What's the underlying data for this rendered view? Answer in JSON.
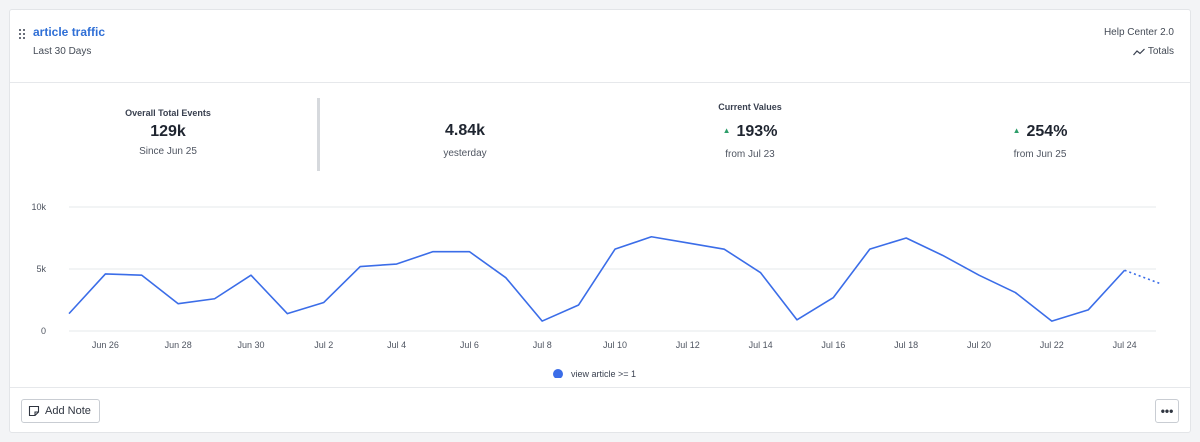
{
  "header": {
    "title": "article traffic",
    "subtitle": "Last 30 Days",
    "source": "Help Center 2.0",
    "totals_label": "Totals"
  },
  "stats": {
    "overall": {
      "label": "Overall Total Events",
      "value": "129k",
      "sub": "Since Jun 25"
    },
    "yesterday": {
      "value": "4.84k",
      "sub": "yesterday"
    },
    "current_label": "Current Values",
    "change1": {
      "value": "193%",
      "sub": "from Jul 23"
    },
    "change2": {
      "value": "254%",
      "sub": "from Jun 25"
    }
  },
  "colors": {
    "series": "#3b6de8",
    "accent": "#2f6fd6",
    "up": "#2e9e6a",
    "grid": "#e6e8eb"
  },
  "icons": {
    "drag": "drag-handle-icon",
    "totals": "trend-line-icon",
    "note": "note-icon",
    "more": "ellipsis-icon"
  },
  "chart_data": {
    "type": "line",
    "x": [
      "Jun 25",
      "Jun 26",
      "Jun 27",
      "Jun 28",
      "Jun 29",
      "Jun 30",
      "Jul 1",
      "Jul 2",
      "Jul 3",
      "Jul 4",
      "Jul 5",
      "Jul 6",
      "Jul 7",
      "Jul 8",
      "Jul 9",
      "Jul 10",
      "Jul 11",
      "Jul 12",
      "Jul 13",
      "Jul 14",
      "Jul 15",
      "Jul 16",
      "Jul 17",
      "Jul 18",
      "Jul 19",
      "Jul 20",
      "Jul 21",
      "Jul 22",
      "Jul 23",
      "Jul 24",
      "Jul 25"
    ],
    "tick_labels": [
      "Jun 26",
      "Jun 28",
      "Jun 30",
      "Jul 2",
      "Jul 4",
      "Jul 6",
      "Jul 8",
      "Jul 10",
      "Jul 12",
      "Jul 14",
      "Jul 16",
      "Jul 18",
      "Jul 20",
      "Jul 22",
      "Jul 24"
    ],
    "series": [
      {
        "name": "view article >= 1",
        "values": [
          1400,
          4600,
          4500,
          2200,
          2600,
          4500,
          1400,
          2300,
          5200,
          5400,
          6400,
          6400,
          4300,
          800,
          2100,
          6600,
          7600,
          7100,
          6600,
          4700,
          900,
          2700,
          6600,
          7500,
          6100,
          4500,
          3100,
          800,
          1700,
          4900,
          3800
        ],
        "incomplete_from_index": 29
      }
    ],
    "ylim": [
      0,
      10000
    ],
    "y_ticks": [
      "0",
      "5k",
      "10k"
    ],
    "grid": true,
    "legend_position": "bottom-center"
  },
  "footer": {
    "add_note_label": "Add Note",
    "more_label": "•••"
  }
}
